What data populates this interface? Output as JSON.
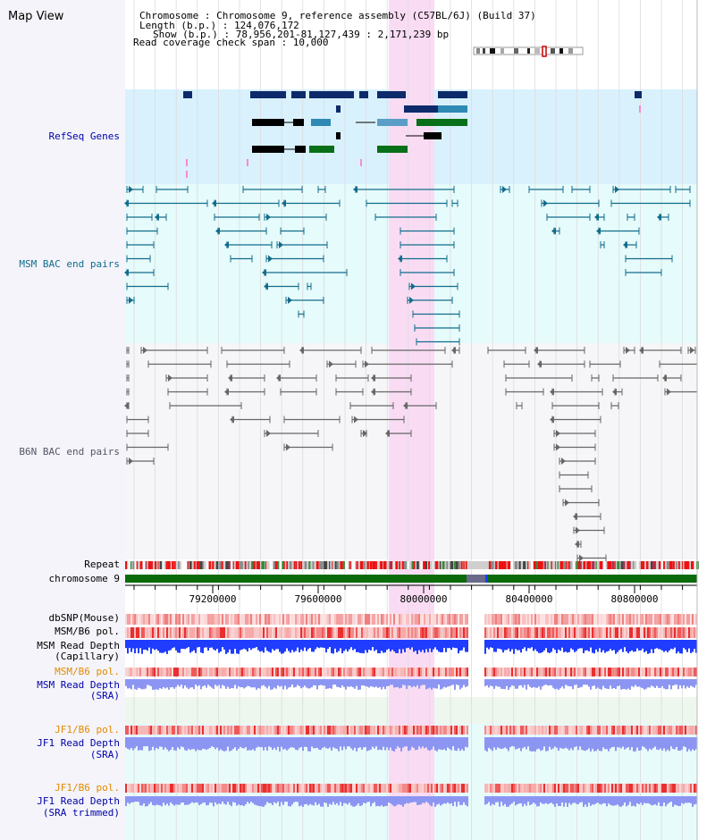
{
  "page_title": "Map View",
  "info": {
    "line1": "Chromosome    : Chromosome 9, reference assembly (C57BL/6J) (Build 37)",
    "line2": "Length (b.p.) : 124,076,172",
    "line3": "Show (b.p.) : 78,956,201-81,127,439 : 2,171,239 bp",
    "line4": "Read coverage check span : 10,000"
  },
  "tracks": {
    "refseq": "RefSeq Genes",
    "msm_bac": "MSM BAC end pairs",
    "b6n_bac": "B6N BAC end pairs",
    "repeat": "Repeat",
    "chromosome": "chromosome 9",
    "dbsnp": "dbSNP(Mouse)",
    "msm_b6_pol": "MSM/B6 pol.",
    "msm_depth_cap_1": "MSM Read Depth",
    "msm_depth_cap_2": "(Capillary)",
    "msm_b6_pol_sra": "MSM/B6 pol.",
    "msm_depth_sra_1": "MSM Read Depth",
    "msm_depth_sra_2": "(SRA)",
    "jf1_b6_pol": "JF1/B6 pol.",
    "jf1_depth_1": "JF1 Read Depth",
    "jf1_depth_2": "(SRA)",
    "jf1_b6_pol_t": "JF1/B6 pol.",
    "jf1_depth_t_1": "JF1 Read Depth",
    "jf1_depth_t_2": "(SRA trimmed)"
  },
  "axis": {
    "ticks": [
      "79200000",
      "79600000",
      "80000000",
      "80400000",
      "80800000"
    ]
  },
  "colors": {
    "refseq_bg": "#d9f1fd",
    "msm_bac_bg": "#e6fbfb",
    "b6n_bg": "#f6f6f8",
    "highlight": "#f9dcf3",
    "chromosome_band": "#0b6b0b",
    "depth_blue": "#1f3cff",
    "depth_light": "#8c96f2",
    "orange_label": "#e38a00",
    "blue_label": "#0000aa",
    "teal_label": "#126c8c"
  }
}
